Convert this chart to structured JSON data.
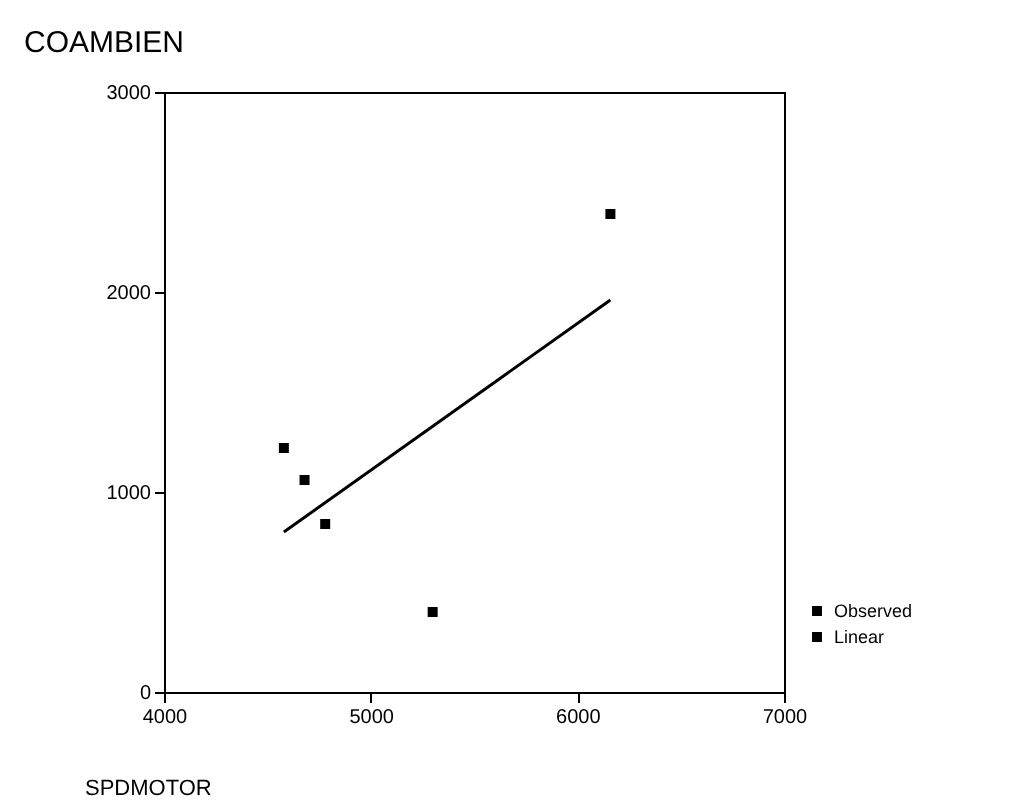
{
  "chart_data": {
    "type": "scatter",
    "title": "COAMBIEN",
    "xlabel": "SPDMOTOR",
    "xlim": [
      4000,
      7000
    ],
    "xticks": [
      4000,
      5000,
      6000,
      7000
    ],
    "ylim": [
      0,
      3000
    ],
    "yticks": [
      0,
      1000,
      2000,
      3000
    ],
    "grid": false,
    "legend": "bottom right",
    "series": [
      {
        "name": "Observed",
        "color": "#000000",
        "marker": "square",
        "x": [
          4580,
          4680,
          4780,
          5300,
          6160
        ],
        "values": [
          1220,
          1060,
          840,
          400,
          2390
        ]
      },
      {
        "name": "Linear",
        "type": "line",
        "color": "#000000",
        "line_style": "solid",
        "marker": "none",
        "x": [
          4580,
          6160
        ],
        "values": [
          800,
          1960
        ]
      }
    ]
  }
}
